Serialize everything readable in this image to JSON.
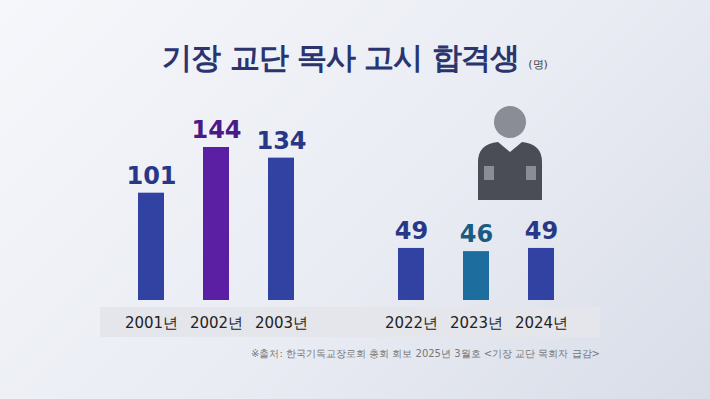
{
  "chart_data": {
    "type": "bar",
    "title": "기장 교단 목사 고시 합격생",
    "ylabel": "(명)",
    "caption": "※출처: 한국기독교장로회 총회 회보 2025년 3월호 <기장 교단 목회자 급감>",
    "categories": [
      "2001년",
      "2002년",
      "2003년",
      "2022년",
      "2023년",
      "2024년"
    ],
    "values": [
      101,
      144,
      134,
      49,
      46,
      49
    ],
    "colors": [
      "#3142a3",
      "#5a1fa3",
      "#3142a3",
      "#3142a3",
      "#1d6e9e",
      "#3142a3"
    ],
    "ylim": [
      0,
      160
    ],
    "grid": false,
    "data_labels": true,
    "tick_labels": "x"
  }
}
